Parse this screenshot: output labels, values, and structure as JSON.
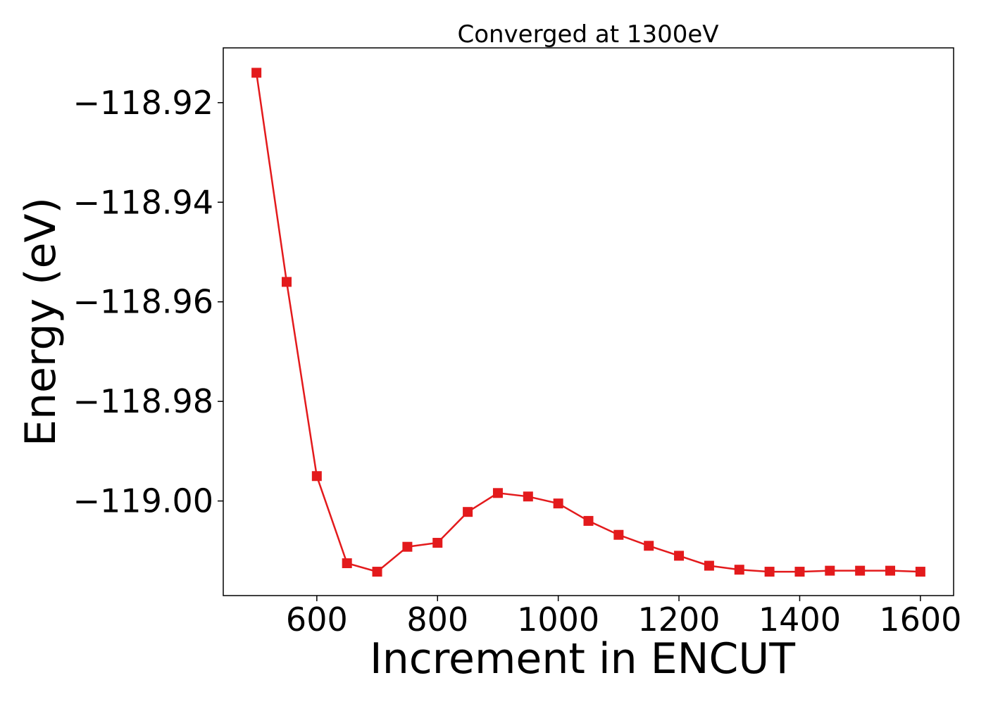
{
  "chart_data": {
    "type": "line",
    "title": "Converged at 1300eV",
    "xlabel": "Increment in ENCUT",
    "ylabel": "Energy (eV)",
    "xlim": [
      445,
      1655
    ],
    "ylim": [
      -119.019,
      -118.909
    ],
    "x_ticks": [
      600,
      800,
      1000,
      1200,
      1400,
      1600
    ],
    "x_tick_labels": [
      "600",
      "800",
      "1000",
      "1200",
      "1400",
      "1600"
    ],
    "y_ticks": [
      -118.92,
      -118.94,
      -118.96,
      -118.98,
      -119.0
    ],
    "y_tick_labels": [
      "−118.92",
      "−118.94",
      "−118.96",
      "−118.98",
      "−119.00"
    ],
    "grid": false,
    "legend": "none",
    "series": [
      {
        "color": "#e31a1c",
        "marker": "square",
        "x": [
          500,
          550,
          600,
          650,
          700,
          750,
          800,
          850,
          900,
          950,
          1000,
          1050,
          1100,
          1150,
          1200,
          1250,
          1300,
          1350,
          1400,
          1450,
          1500,
          1550,
          1600
        ],
        "y": [
          -118.914,
          -118.956,
          -118.995,
          -119.0125,
          -119.0142,
          -119.0092,
          -119.0084,
          -119.0022,
          -118.9984,
          -118.9991,
          -119.0005,
          -119.004,
          -119.0068,
          -119.009,
          -119.011,
          -119.013,
          -119.0138,
          -119.0142,
          -119.0142,
          -119.014,
          -119.014,
          -119.014,
          -119.0142
        ]
      }
    ]
  }
}
